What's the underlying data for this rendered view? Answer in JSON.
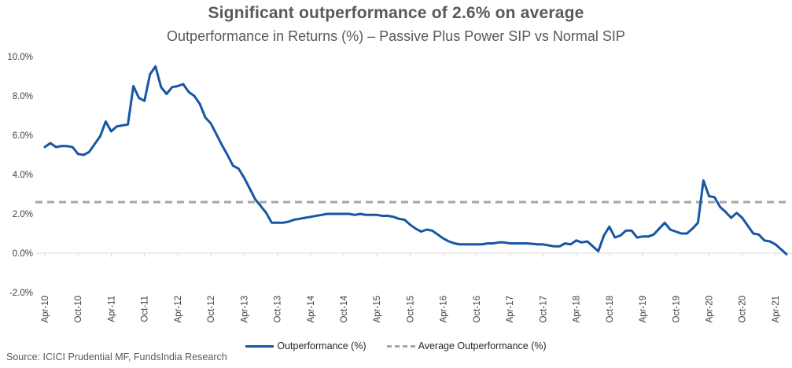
{
  "header": {
    "title": "Significant outperformance of 2.6% on average",
    "subtitle": "Outperformance in Returns (%) – Passive Plus Power SIP vs Normal SIP"
  },
  "chart_data": {
    "type": "line",
    "title": "Significant outperformance of 2.6% on average",
    "subtitle": "Outperformance in Returns (%) – Passive Plus Power SIP vs Normal SIP",
    "x_start": "Apr-10",
    "x_frequency": "monthly",
    "x_tick_labels": [
      "Apr-10",
      "Oct-10",
      "Apr-11",
      "Oct-11",
      "Apr-12",
      "Oct-12",
      "Apr-13",
      "Oct-13",
      "Apr-14",
      "Oct-14",
      "Apr-15",
      "Oct-15",
      "Apr-16",
      "Oct-16",
      "Apr-17",
      "Oct-17",
      "Apr-18",
      "Oct-18",
      "Apr-19",
      "Oct-19",
      "Apr-20",
      "Oct-20",
      "Apr-21"
    ],
    "x_tick_interval_months": 6,
    "y_tick_labels": [
      "10.0%",
      "8.0%",
      "6.0%",
      "4.0%",
      "2.0%",
      "0.0%",
      "-2.0%"
    ],
    "y_tick_values": [
      10,
      8,
      6,
      4,
      2,
      0,
      -2
    ],
    "ylim": [
      -2,
      10
    ],
    "grid": false,
    "legend_position": "bottom",
    "series": [
      {
        "name": "Outperformance (%)",
        "color": "#1656A3",
        "style": "solid",
        "values": [
          5.4,
          5.6,
          5.4,
          5.45,
          5.45,
          5.4,
          5.05,
          5.0,
          5.15,
          5.55,
          5.95,
          6.7,
          6.2,
          6.45,
          6.5,
          6.55,
          8.5,
          7.9,
          7.75,
          9.1,
          9.5,
          8.45,
          8.1,
          8.45,
          8.5,
          8.6,
          8.2,
          8.0,
          7.6,
          6.9,
          6.6,
          6.05,
          5.5,
          5.0,
          4.45,
          4.3,
          3.85,
          3.3,
          2.75,
          2.4,
          2.05,
          1.55,
          1.55,
          1.55,
          1.6,
          1.7,
          1.75,
          1.8,
          1.85,
          1.9,
          1.95,
          2.0,
          2.0,
          2.0,
          2.0,
          2.0,
          1.95,
          2.0,
          1.95,
          1.95,
          1.95,
          1.9,
          1.9,
          1.85,
          1.75,
          1.7,
          1.45,
          1.25,
          1.1,
          1.2,
          1.15,
          0.95,
          0.75,
          0.6,
          0.5,
          0.45,
          0.45,
          0.45,
          0.45,
          0.45,
          0.5,
          0.5,
          0.55,
          0.55,
          0.5,
          0.5,
          0.5,
          0.5,
          0.48,
          0.45,
          0.45,
          0.4,
          0.35,
          0.35,
          0.5,
          0.45,
          0.65,
          0.55,
          0.6,
          0.35,
          0.1,
          0.9,
          1.35,
          0.8,
          0.9,
          1.15,
          1.15,
          0.8,
          0.85,
          0.85,
          0.95,
          1.25,
          1.55,
          1.2,
          1.1,
          1.0,
          1.0,
          1.25,
          1.55,
          3.7,
          2.9,
          2.85,
          2.35,
          2.1,
          1.8,
          2.05,
          1.8,
          1.4,
          1.0,
          0.95,
          0.65,
          0.6,
          0.45,
          0.2,
          -0.05
        ]
      },
      {
        "name": "Average Outperformance (%)",
        "color": "#A6A6A6",
        "style": "dashed",
        "value": 2.6
      }
    ]
  },
  "footer": {
    "source_text": "Source: ICICI Prudential MF, FundsIndia Research"
  }
}
